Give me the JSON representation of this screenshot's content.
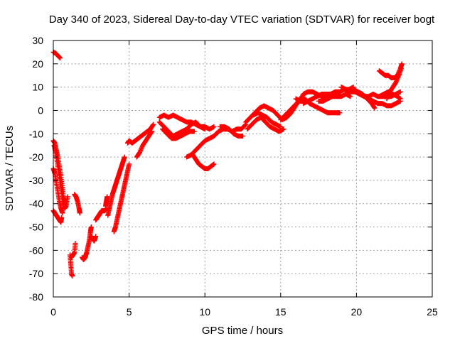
{
  "chart_data": {
    "type": "scatter",
    "title": "Day 340 of 2023, Sidereal Day-to-day VTEC variation (SDTVAR) for receiver bogt",
    "xlabel": "GPS time / hours",
    "ylabel": "SDTVAR / TECUs",
    "xlim": [
      0,
      25
    ],
    "ylim": [
      -80,
      30
    ],
    "xticks": [
      "0",
      "5",
      "10",
      "15",
      "20",
      "25"
    ],
    "yticks": [
      "30",
      "20",
      "10",
      "0",
      "-10",
      "-20",
      "-30",
      "-40",
      "-50",
      "-60",
      "-70",
      "-80"
    ],
    "grid": true,
    "marker": "plus",
    "color": "#ff0000",
    "tracks": [
      [
        [
          0.0,
          25
        ],
        [
          0.15,
          24.5
        ],
        [
          0.3,
          23.5
        ],
        [
          0.45,
          22.5
        ]
      ],
      [
        [
          0.0,
          -13
        ],
        [
          0.1,
          -14
        ],
        [
          0.2,
          -17
        ],
        [
          0.3,
          -20
        ],
        [
          0.4,
          -24
        ],
        [
          0.5,
          -28
        ],
        [
          0.6,
          -33
        ],
        [
          0.7,
          -38
        ],
        [
          0.8,
          -41
        ]
      ],
      [
        [
          0.05,
          -15
        ],
        [
          0.15,
          -18
        ],
        [
          0.25,
          -22
        ],
        [
          0.35,
          -26
        ],
        [
          0.45,
          -30
        ],
        [
          0.55,
          -35
        ],
        [
          0.65,
          -39
        ],
        [
          0.75,
          -42
        ],
        [
          0.85,
          -41
        ],
        [
          0.95,
          -37
        ]
      ],
      [
        [
          0.0,
          -25
        ],
        [
          0.1,
          -27
        ],
        [
          0.2,
          -31
        ],
        [
          0.3,
          -35
        ],
        [
          0.4,
          -39
        ],
        [
          0.5,
          -42
        ],
        [
          0.6,
          -44
        ]
      ],
      [
        [
          0.0,
          -43
        ],
        [
          0.1,
          -44
        ],
        [
          0.2,
          -45
        ],
        [
          0.3,
          -46
        ],
        [
          0.4,
          -47
        ],
        [
          0.5,
          -48
        ],
        [
          0.55,
          -46
        ]
      ],
      [
        [
          1.1,
          -62
        ],
        [
          1.15,
          -66
        ],
        [
          1.2,
          -70
        ],
        [
          1.25,
          -71
        ]
      ],
      [
        [
          1.2,
          -63
        ],
        [
          1.3,
          -62
        ],
        [
          1.4,
          -61
        ],
        [
          1.45,
          -57
        ]
      ],
      [
        [
          1.4,
          -36
        ],
        [
          1.5,
          -37
        ],
        [
          1.6,
          -39
        ],
        [
          1.7,
          -42
        ],
        [
          1.75,
          -44
        ]
      ],
      [
        [
          1.9,
          -63
        ],
        [
          2.0,
          -64
        ],
        [
          2.1,
          -63
        ],
        [
          2.2,
          -61
        ],
        [
          2.3,
          -58
        ],
        [
          2.4,
          -55
        ],
        [
          2.45,
          -52
        ],
        [
          2.5,
          -50
        ]
      ],
      [
        [
          2.5,
          -54
        ],
        [
          2.6,
          -55
        ],
        [
          2.7,
          -56
        ],
        [
          2.8,
          -54
        ]
      ],
      [
        [
          2.8,
          -47
        ],
        [
          2.9,
          -46
        ],
        [
          3.0,
          -45
        ],
        [
          3.1,
          -44
        ],
        [
          3.2,
          -43
        ],
        [
          3.3,
          -43
        ],
        [
          3.4,
          -43
        ],
        [
          3.5,
          -42
        ]
      ],
      [
        [
          3.45,
          -41
        ],
        [
          3.5,
          -39
        ],
        [
          3.55,
          -37
        ]
      ],
      [
        [
          3.6,
          -45
        ],
        [
          3.7,
          -42
        ],
        [
          3.8,
          -39
        ],
        [
          3.9,
          -36
        ],
        [
          4.0,
          -34
        ],
        [
          4.1,
          -32
        ],
        [
          4.2,
          -30
        ],
        [
          4.3,
          -28
        ],
        [
          4.4,
          -26
        ],
        [
          4.5,
          -24
        ],
        [
          4.6,
          -22
        ],
        [
          4.7,
          -20
        ]
      ],
      [
        [
          4.0,
          -52
        ],
        [
          4.1,
          -50
        ],
        [
          4.2,
          -47
        ],
        [
          4.3,
          -44
        ],
        [
          4.4,
          -41
        ],
        [
          4.5,
          -38
        ],
        [
          4.6,
          -35
        ],
        [
          4.7,
          -32
        ],
        [
          4.8,
          -29
        ],
        [
          4.9,
          -26
        ],
        [
          5.0,
          -23
        ]
      ],
      [
        [
          4.9,
          -14
        ],
        [
          5.0,
          -13
        ],
        [
          5.2,
          -14
        ],
        [
          5.4,
          -13
        ],
        [
          5.6,
          -12
        ],
        [
          5.8,
          -11
        ],
        [
          6.0,
          -10
        ],
        [
          6.2,
          -9
        ],
        [
          6.4,
          -8
        ],
        [
          6.6,
          -6
        ]
      ],
      [
        [
          5.5,
          -20
        ],
        [
          5.7,
          -18
        ],
        [
          5.9,
          -15
        ],
        [
          6.1,
          -13
        ],
        [
          6.3,
          -11
        ],
        [
          6.5,
          -9
        ]
      ],
      [
        [
          7.0,
          -3
        ],
        [
          7.3,
          -2
        ],
        [
          7.6,
          -3
        ],
        [
          7.9,
          -2
        ],
        [
          8.2,
          -3
        ],
        [
          8.5,
          -4
        ],
        [
          8.8,
          -5
        ],
        [
          9.1,
          -5
        ],
        [
          9.4,
          -6
        ],
        [
          9.7,
          -7
        ],
        [
          10.0,
          -7
        ],
        [
          10.3,
          -8
        ],
        [
          10.6,
          -7
        ]
      ],
      [
        [
          7.0,
          -5
        ],
        [
          7.3,
          -7
        ],
        [
          7.6,
          -9
        ],
        [
          7.9,
          -11
        ],
        [
          8.2,
          -10
        ],
        [
          8.5,
          -9
        ],
        [
          8.8,
          -8
        ],
        [
          9.1,
          -6
        ],
        [
          9.4,
          -5
        ],
        [
          9.7,
          -7
        ],
        [
          10.0,
          -8
        ]
      ],
      [
        [
          7.2,
          -8
        ],
        [
          7.5,
          -10
        ],
        [
          7.8,
          -12
        ],
        [
          8.1,
          -12
        ],
        [
          8.4,
          -11
        ],
        [
          8.7,
          -10
        ],
        [
          9.0,
          -9
        ],
        [
          9.3,
          -9
        ]
      ],
      [
        [
          8.8,
          -20
        ],
        [
          9.1,
          -19
        ],
        [
          9.4,
          -17
        ],
        [
          9.7,
          -15
        ],
        [
          10.0,
          -13
        ],
        [
          10.3,
          -12
        ],
        [
          10.6,
          -11
        ],
        [
          10.9,
          -9
        ],
        [
          11.2,
          -8
        ],
        [
          11.5,
          -8
        ],
        [
          11.8,
          -9
        ],
        [
          12.1,
          -8
        ],
        [
          12.4,
          -8
        ],
        [
          12.7,
          -6
        ]
      ],
      [
        [
          9.2,
          -19
        ],
        [
          9.4,
          -21
        ],
        [
          9.6,
          -23
        ],
        [
          9.8,
          -24
        ],
        [
          10.0,
          -25
        ],
        [
          10.2,
          -25
        ],
        [
          10.4,
          -24
        ],
        [
          10.6,
          -23
        ]
      ],
      [
        [
          11.0,
          -7
        ],
        [
          11.3,
          -7
        ],
        [
          11.6,
          -8
        ],
        [
          11.9,
          -10
        ],
        [
          12.2,
          -11
        ],
        [
          12.5,
          -11
        ]
      ],
      [
        [
          12.7,
          -5
        ],
        [
          13.0,
          -3
        ],
        [
          13.3,
          -1
        ],
        [
          13.6,
          1
        ],
        [
          13.9,
          2
        ],
        [
          14.2,
          1
        ],
        [
          14.5,
          0
        ],
        [
          14.8,
          -2
        ],
        [
          15.1,
          -4
        ],
        [
          15.4,
          -3
        ],
        [
          15.7,
          -1
        ],
        [
          16.0,
          2
        ],
        [
          16.3,
          5
        ]
      ],
      [
        [
          12.8,
          -8
        ],
        [
          13.1,
          -6
        ],
        [
          13.4,
          -4
        ],
        [
          13.7,
          -3
        ],
        [
          14.0,
          -5
        ],
        [
          14.3,
          -7
        ],
        [
          14.6,
          -8
        ],
        [
          14.9,
          -9
        ],
        [
          15.2,
          -8
        ]
      ],
      [
        [
          13.2,
          -2
        ],
        [
          13.5,
          -1
        ],
        [
          13.8,
          -2
        ],
        [
          14.1,
          -3
        ],
        [
          14.4,
          -5
        ],
        [
          14.7,
          -6
        ],
        [
          15.0,
          -7
        ]
      ],
      [
        [
          15.0,
          -4
        ],
        [
          15.3,
          -2
        ],
        [
          15.6,
          0
        ],
        [
          15.9,
          2
        ],
        [
          16.2,
          4
        ],
        [
          16.5,
          7
        ],
        [
          16.8,
          8
        ],
        [
          17.1,
          8
        ],
        [
          17.4,
          7
        ],
        [
          17.7,
          6
        ],
        [
          18.0,
          6
        ]
      ],
      [
        [
          16.0,
          5
        ],
        [
          16.3,
          4
        ],
        [
          16.6,
          5
        ],
        [
          16.9,
          3
        ],
        [
          17.2,
          2
        ],
        [
          17.5,
          1
        ],
        [
          17.8,
          0
        ],
        [
          18.1,
          -1
        ],
        [
          18.4,
          -1
        ],
        [
          18.7,
          -1
        ],
        [
          18.9,
          -1
        ]
      ],
      [
        [
          16.5,
          3
        ],
        [
          16.8,
          4
        ],
        [
          17.1,
          5
        ],
        [
          17.4,
          6
        ],
        [
          17.7,
          7
        ],
        [
          18.0,
          7
        ],
        [
          18.3,
          7
        ],
        [
          18.6,
          8
        ],
        [
          18.9,
          8
        ],
        [
          19.2,
          9
        ],
        [
          19.5,
          9
        ],
        [
          19.8,
          10
        ]
      ],
      [
        [
          17.5,
          4
        ],
        [
          17.8,
          4
        ],
        [
          18.1,
          5
        ],
        [
          18.4,
          6
        ],
        [
          18.7,
          6
        ],
        [
          19.0,
          6
        ],
        [
          19.3,
          7
        ],
        [
          19.6,
          6
        ]
      ],
      [
        [
          19.0,
          10
        ],
        [
          19.3,
          9
        ],
        [
          19.6,
          8
        ],
        [
          19.9,
          8
        ],
        [
          20.2,
          7
        ],
        [
          20.5,
          6
        ],
        [
          20.8,
          5
        ],
        [
          21.1,
          4
        ],
        [
          21.4,
          3
        ],
        [
          21.7,
          3
        ],
        [
          22.0,
          2
        ],
        [
          22.3,
          2
        ],
        [
          22.6,
          3
        ],
        [
          22.9,
          4
        ]
      ],
      [
        [
          19.5,
          8
        ],
        [
          19.8,
          9
        ],
        [
          20.1,
          8
        ],
        [
          20.4,
          7
        ],
        [
          20.7,
          5
        ],
        [
          21.0,
          3
        ],
        [
          21.2,
          1
        ]
      ],
      [
        [
          20.5,
          6
        ],
        [
          20.8,
          6
        ],
        [
          21.1,
          7
        ],
        [
          21.4,
          6
        ],
        [
          21.7,
          6
        ],
        [
          22.0,
          6
        ],
        [
          22.3,
          6
        ],
        [
          22.6,
          7
        ],
        [
          22.9,
          8
        ]
      ],
      [
        [
          21.5,
          6
        ],
        [
          21.8,
          7
        ],
        [
          22.1,
          8
        ],
        [
          22.4,
          7
        ],
        [
          22.7,
          6
        ],
        [
          22.9,
          5
        ]
      ],
      [
        [
          21.5,
          17
        ],
        [
          21.7,
          16
        ],
        [
          21.9,
          15
        ],
        [
          22.1,
          15
        ],
        [
          22.3,
          14
        ],
        [
          22.5,
          14
        ],
        [
          22.7,
          15
        ],
        [
          22.9,
          18
        ],
        [
          23.0,
          20
        ]
      ],
      [
        [
          22.0,
          5
        ],
        [
          22.2,
          8
        ],
        [
          22.4,
          10
        ],
        [
          22.6,
          12
        ],
        [
          22.8,
          15
        ],
        [
          22.95,
          18
        ]
      ]
    ]
  }
}
